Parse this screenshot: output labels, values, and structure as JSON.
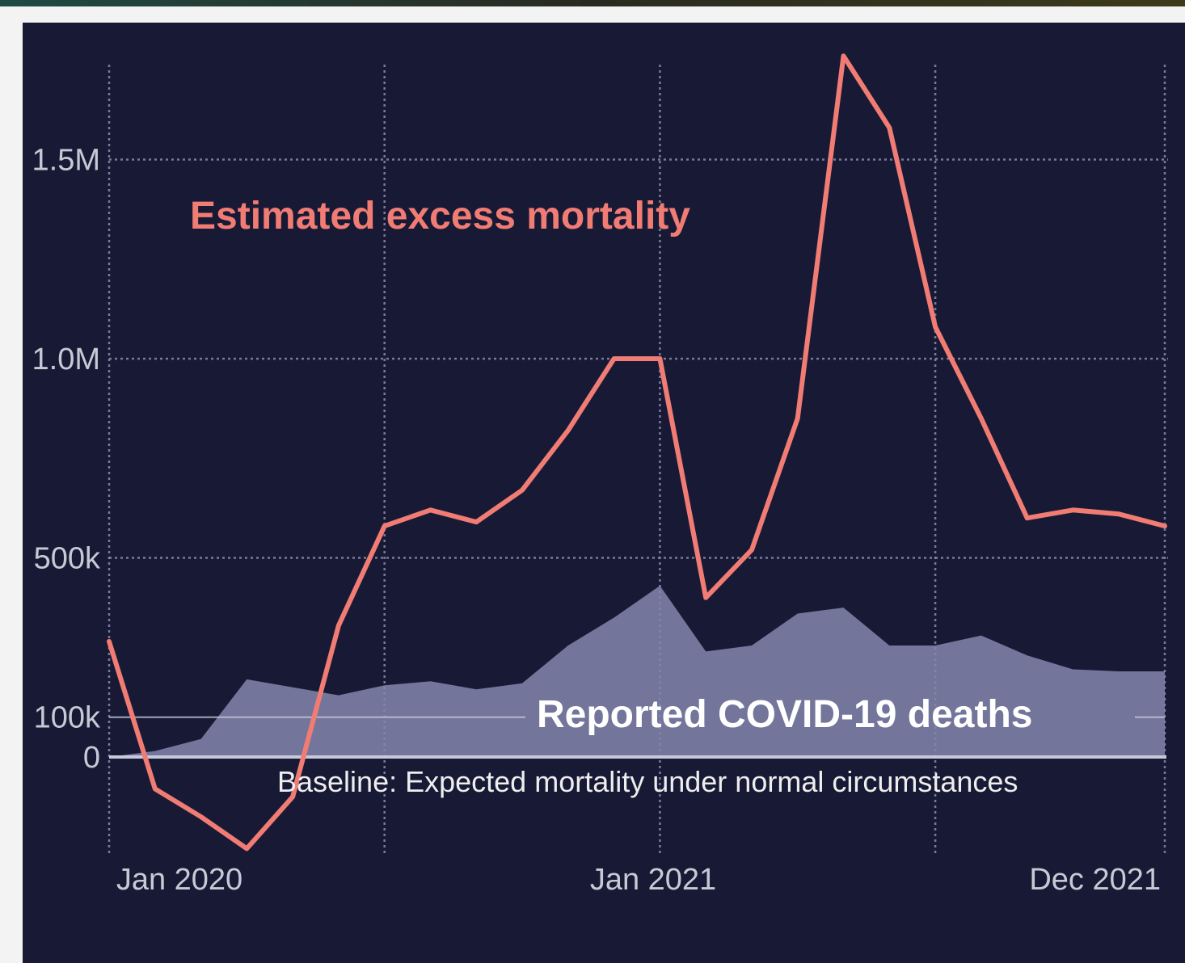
{
  "chart_data": {
    "type": "line",
    "x": [
      "2020-01",
      "2020-02",
      "2020-03",
      "2020-04",
      "2020-05",
      "2020-06",
      "2020-07",
      "2020-08",
      "2020-09",
      "2020-10",
      "2020-11",
      "2020-12",
      "2021-01",
      "2021-02",
      "2021-03",
      "2021-04",
      "2021-05",
      "2021-06",
      "2021-07",
      "2021-08",
      "2021-09",
      "2021-10",
      "2021-11",
      "2021-12"
    ],
    "x_tick_labels": [
      "Jan 2020",
      "Jan 2021",
      "Dec 2021"
    ],
    "y_tick_labels": [
      "1.5M",
      "1.0M",
      "500k",
      "100k",
      "0"
    ],
    "ylim": [
      -260000,
      1750000
    ],
    "grid": true,
    "series": [
      {
        "name": "Estimated excess mortality",
        "color": "#f07c74",
        "style": "line",
        "values": [
          290000,
          -80000,
          -150000,
          -230000,
          -100000,
          330000,
          580000,
          620000,
          590000,
          670000,
          820000,
          1000000,
          1000000,
          400000,
          520000,
          850000,
          1760000,
          1580000,
          1080000,
          850000,
          600000,
          620000,
          610000,
          580000
        ]
      },
      {
        "name": "Reported COVID-19 deaths",
        "color": "#8486ad",
        "style": "area",
        "values": [
          0,
          15000,
          45000,
          195000,
          175000,
          155000,
          180000,
          190000,
          170000,
          185000,
          280000,
          350000,
          430000,
          265000,
          280000,
          360000,
          375000,
          280000,
          280000,
          305000,
          255000,
          220000,
          215000,
          215000
        ]
      }
    ],
    "annotations": {
      "excess_label": "Estimated excess mortality",
      "deaths_label": "Reported COVID-19 deaths",
      "baseline_label": "Baseline: Expected mortality under normal circumstances"
    },
    "colors": {
      "background": "#181a35",
      "grid": "#8a8ca8",
      "excess": "#f07c74",
      "deaths_fill": "#8486ad",
      "baseline": "#c7c8da"
    }
  }
}
